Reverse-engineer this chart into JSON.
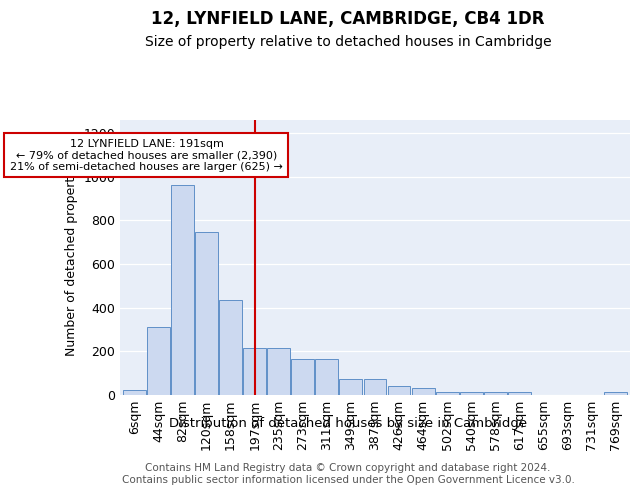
{
  "title1": "12, LYNFIELD LANE, CAMBRIDGE, CB4 1DR",
  "title2": "Size of property relative to detached houses in Cambridge",
  "xlabel": "Distribution of detached houses by size in Cambridge",
  "ylabel": "Number of detached properties",
  "bin_labels": [
    "6sqm",
    "44sqm",
    "82sqm",
    "120sqm",
    "158sqm",
    "197sqm",
    "235sqm",
    "273sqm",
    "311sqm",
    "349sqm",
    "387sqm",
    "426sqm",
    "464sqm",
    "502sqm",
    "540sqm",
    "578sqm",
    "617sqm",
    "655sqm",
    "693sqm",
    "731sqm",
    "769sqm"
  ],
  "bar_heights": [
    25,
    310,
    960,
    745,
    435,
    215,
    215,
    165,
    165,
    75,
    75,
    40,
    30,
    15,
    15,
    15,
    15,
    0,
    0,
    0,
    13
  ],
  "bar_color": "#ccd9f0",
  "bar_edge_color": "#6090c8",
  "vline_x_index": 5,
  "vline_color": "#cc0000",
  "annotation_line1": "12 LYNFIELD LANE: 191sqm",
  "annotation_line2": "← 79% of detached houses are smaller (2,390)",
  "annotation_line3": "21% of semi-detached houses are larger (625) →",
  "annotation_box_color": "#ffffff",
  "annotation_box_edge": "#cc0000",
  "ylim": [
    0,
    1260
  ],
  "yticks": [
    0,
    200,
    400,
    600,
    800,
    1000,
    1200
  ],
  "background_color": "#e8eef8",
  "footer_text": "Contains HM Land Registry data © Crown copyright and database right 2024.\nContains public sector information licensed under the Open Government Licence v3.0.",
  "title1_fontsize": 12,
  "title2_fontsize": 10,
  "xlabel_fontsize": 9.5,
  "ylabel_fontsize": 9,
  "footer_fontsize": 7.5
}
